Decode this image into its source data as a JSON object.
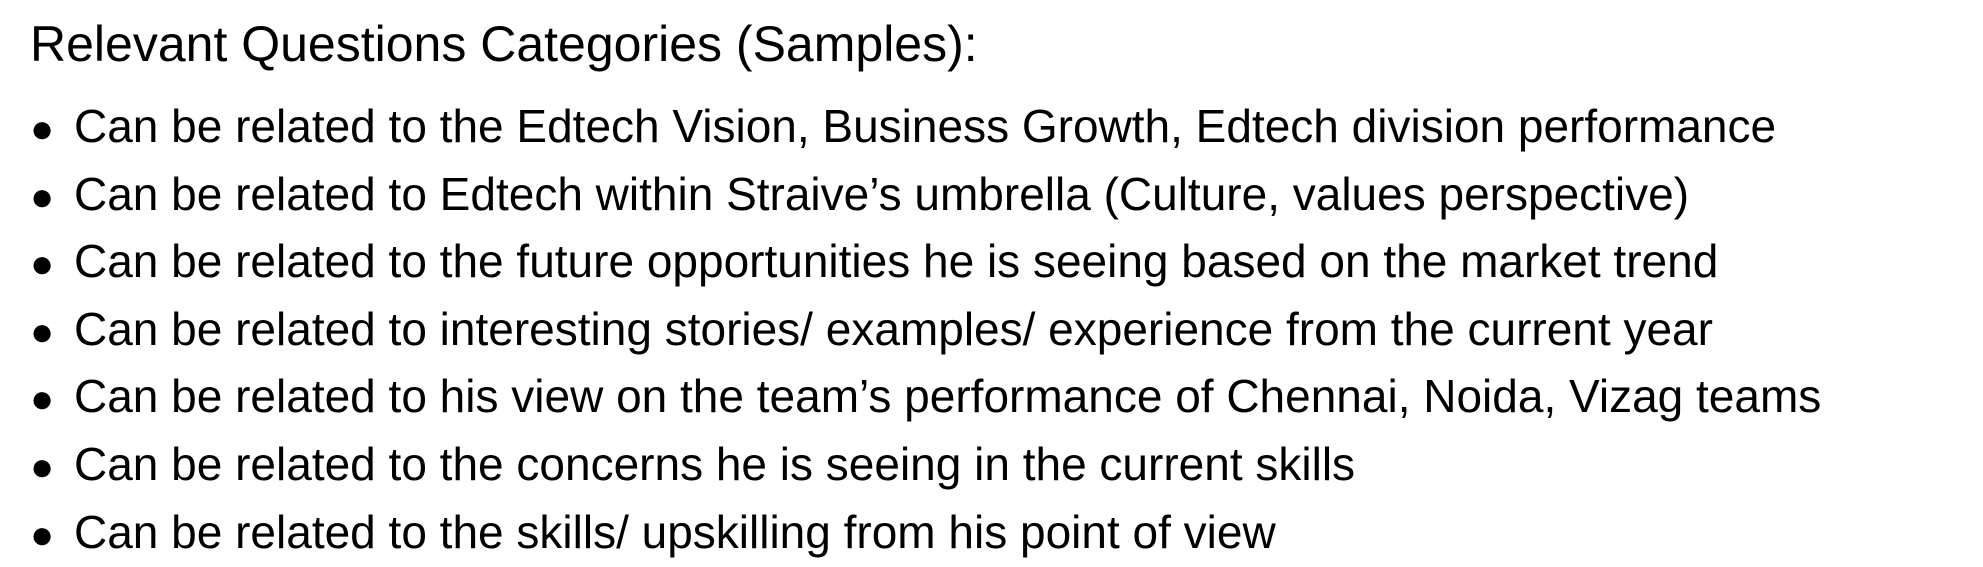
{
  "document": {
    "heading": "Relevant Questions Categories (Samples):",
    "bullet_glyph": "●",
    "items": [
      "Can be related to the Edtech Vision, Business Growth, Edtech division performance",
      "Can be related to Edtech within Straive’s umbrella (Culture, values perspective)",
      "Can be related to the future opportunities he is seeing based on the market trend",
      "Can be related to interesting stories/ examples/ experience from the current year",
      "Can be related to his view on the team’s performance of Chennai, Noida, Vizag teams",
      "Can be related to the concerns he is seeing in the current skills",
      "Can be related to the skills/ upskilling from his point of view"
    ]
  }
}
